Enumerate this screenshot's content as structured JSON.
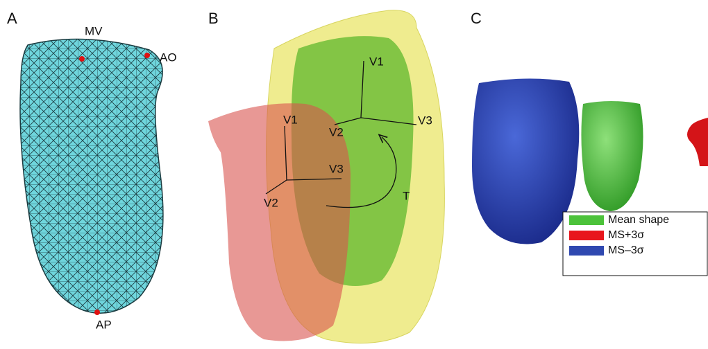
{
  "panels": [
    {
      "label": "A",
      "annotations": [
        "MV",
        "AO",
        "AP"
      ]
    },
    {
      "label": "B",
      "annotations": [
        "V1",
        "V2",
        "V3",
        "V1",
        "V2",
        "V3",
        "T"
      ]
    },
    {
      "label": "C",
      "legend": [
        {
          "name": "Mean shape",
          "color": "#4cc23a"
        },
        {
          "name": "MS+3σ",
          "color": "#e8161c"
        },
        {
          "name": "MS–3σ",
          "color": "#2f48b0"
        }
      ]
    }
  ]
}
